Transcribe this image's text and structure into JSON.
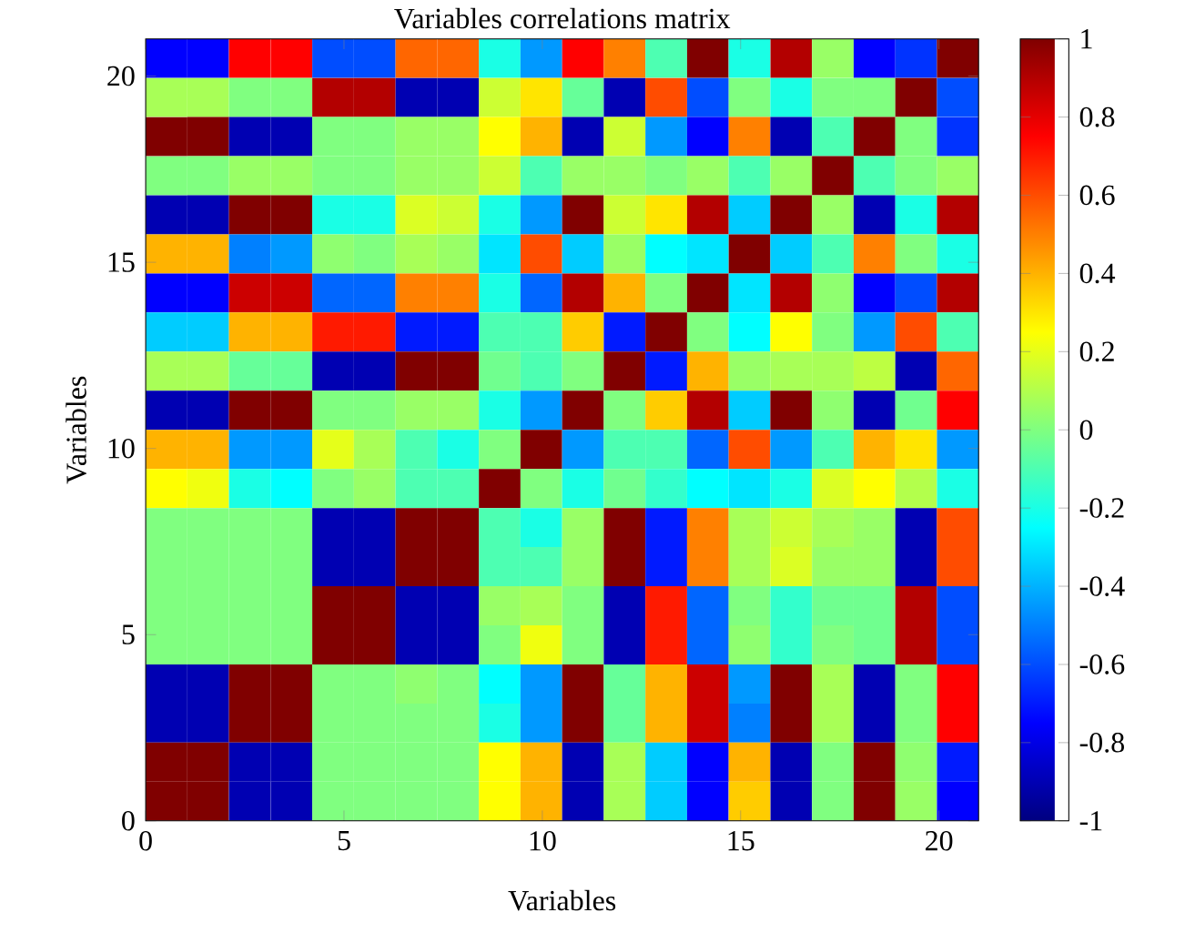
{
  "chart_data": {
    "type": "heatmap",
    "title": "Variables correlations matrix",
    "xlabel": "Variables",
    "ylabel": "Variables",
    "x": [
      0.525,
      1.575,
      2.625,
      3.675,
      4.725,
      5.775,
      6.825,
      7.875,
      8.925,
      9.975,
      11.025,
      12.075,
      13.125,
      14.175,
      15.225,
      16.275,
      17.325,
      18.375,
      19.425,
      20.475
    ],
    "y": [
      20.475,
      19.425,
      18.375,
      17.325,
      16.275,
      15.225,
      14.175,
      13.125,
      12.075,
      11.025,
      9.975,
      8.925,
      7.875,
      6.825,
      5.775,
      4.725,
      3.675,
      2.625,
      1.575,
      0.525
    ],
    "xlim": [
      0,
      21
    ],
    "ylim": [
      0,
      21
    ],
    "xticks": [
      0,
      5,
      10,
      15,
      20
    ],
    "yticks": [
      0,
      5,
      10,
      15,
      20
    ],
    "clim": [
      -1,
      1
    ],
    "cticks": [
      -1,
      -0.8,
      -0.6,
      -0.4,
      -0.2,
      0,
      0.2,
      0.4,
      0.6,
      0.8,
      1
    ],
    "cells": [
      [
        -0.75,
        -0.75,
        0.75,
        0.75,
        -0.6,
        -0.6,
        0.55,
        0.55,
        -0.2,
        -0.45,
        0.75,
        0.5,
        -0.1,
        1,
        -0.2,
        0.9,
        0.05,
        -0.75,
        -0.65,
        1
      ],
      [
        0.08,
        0.08,
        0,
        0,
        0.9,
        0.9,
        -0.9,
        -0.9,
        0.15,
        0.3,
        -0.05,
        -0.9,
        0.6,
        -0.6,
        0,
        -0.2,
        0,
        0,
        1,
        -0.6
      ],
      [
        1,
        1,
        -0.9,
        -0.9,
        0,
        0,
        0.05,
        0.05,
        0.25,
        0.4,
        -0.9,
        0.15,
        -0.45,
        -0.75,
        0.5,
        -0.9,
        -0.1,
        1,
        0,
        -0.65
      ],
      [
        0,
        0,
        0.05,
        0.05,
        0,
        0,
        0.05,
        0.05,
        0.15,
        -0.1,
        0.05,
        0.05,
        0,
        0.05,
        -0.1,
        0.05,
        1,
        -0.1,
        0,
        0.05
      ],
      [
        -0.9,
        -0.9,
        1,
        1,
        -0.2,
        -0.2,
        0.18,
        0.15,
        -0.2,
        -0.45,
        1,
        0.15,
        0.3,
        0.9,
        -0.35,
        1,
        0.05,
        -0.9,
        -0.2,
        0.9
      ],
      [
        0.4,
        0.4,
        -0.5,
        -0.45,
        0.03,
        0,
        0.08,
        0.05,
        -0.3,
        0.6,
        -0.35,
        0.05,
        -0.25,
        -0.3,
        1,
        -0.35,
        -0.1,
        0.5,
        0,
        -0.2
      ],
      [
        -0.75,
        -0.75,
        0.85,
        0.85,
        -0.55,
        -0.55,
        0.5,
        0.5,
        -0.2,
        -0.55,
        0.9,
        0.4,
        0,
        1,
        -0.3,
        0.9,
        0.03,
        -0.75,
        -0.6,
        0.9
      ],
      [
        -0.35,
        -0.35,
        0.4,
        0.4,
        0.7,
        0.7,
        -0.7,
        -0.7,
        -0.1,
        -0.1,
        0.35,
        -0.7,
        1,
        0,
        -0.25,
        0.25,
        0,
        -0.45,
        0.6,
        -0.1
      ],
      [
        0.08,
        0.08,
        -0.05,
        -0.05,
        -0.9,
        -0.9,
        1,
        1,
        -0.03,
        -0.1,
        0,
        1,
        -0.7,
        0.4,
        0.05,
        0.08,
        0.08,
        0.12,
        -0.9,
        0.55
      ],
      [
        -0.9,
        -0.9,
        1,
        1,
        0,
        0,
        0.05,
        0.05,
        -0.2,
        -0.45,
        1,
        0,
        0.35,
        0.9,
        -0.35,
        1,
        0.03,
        -0.9,
        -0.03,
        0.75
      ],
      [
        0.4,
        0.4,
        -0.45,
        -0.45,
        0.2,
        0.08,
        -0.1,
        -0.2,
        0,
        1,
        -0.45,
        -0.1,
        -0.1,
        -0.55,
        0.6,
        -0.45,
        -0.1,
        0.4,
        0.3,
        -0.45
      ],
      [
        0.25,
        0.22,
        -0.2,
        -0.25,
        0,
        0.05,
        -0.1,
        -0.1,
        1,
        0,
        -0.2,
        -0.03,
        -0.15,
        -0.25,
        -0.3,
        -0.2,
        0.18,
        0.25,
        0.1,
        -0.2
      ],
      [
        0,
        0,
        0,
        0,
        -0.9,
        -0.9,
        1,
        1,
        -0.1,
        -0.2,
        0.05,
        1,
        -0.7,
        0.5,
        0.08,
        0.15,
        0.08,
        0.05,
        -0.9,
        0.6
      ],
      [
        0,
        0,
        0,
        0,
        -0.9,
        -0.9,
        1,
        1,
        -0.1,
        -0.1,
        0.05,
        1,
        -0.7,
        0.5,
        0.08,
        0.18,
        0.05,
        0.05,
        -0.9,
        0.6
      ],
      [
        0,
        0,
        0,
        0,
        1,
        1,
        -0.9,
        -0.9,
        0.05,
        0.08,
        0,
        -0.9,
        0.7,
        -0.55,
        0,
        -0.15,
        -0.03,
        -0.03,
        0.9,
        -0.6
      ],
      [
        0,
        0,
        0,
        0,
        1,
        1,
        -0.9,
        -0.9,
        0,
        0.22,
        0,
        -0.9,
        0.7,
        -0.55,
        0.03,
        -0.15,
        0,
        -0.03,
        0.9,
        -0.6
      ],
      [
        -0.9,
        -0.9,
        1,
        1,
        0,
        0,
        0.03,
        0,
        -0.25,
        -0.45,
        1,
        -0.05,
        0.4,
        0.85,
        -0.45,
        1,
        0.08,
        -0.9,
        0,
        0.75
      ],
      [
        -0.9,
        -0.9,
        1,
        1,
        0,
        0,
        0,
        0,
        -0.2,
        -0.45,
        1,
        -0.05,
        0.4,
        0.85,
        -0.5,
        1,
        0.08,
        -0.9,
        0,
        0.75
      ],
      [
        1,
        1,
        -0.9,
        -0.9,
        0,
        0,
        0,
        0,
        0.25,
        0.4,
        -0.9,
        0.08,
        -0.35,
        -0.75,
        0.4,
        -0.9,
        0,
        1,
        0.03,
        -0.7
      ],
      [
        1,
        1,
        -0.9,
        -0.9,
        0,
        0,
        0,
        0,
        0.25,
        0.4,
        -0.9,
        0.08,
        -0.35,
        -0.75,
        0.35,
        -0.9,
        0,
        1,
        0.05,
        -0.75
      ]
    ]
  }
}
